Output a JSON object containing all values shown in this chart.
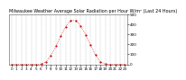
{
  "title": "Milwaukee Weather Average Solar Radiation per Hour W/m² (Last 24 Hours)",
  "x_hours": [
    0,
    1,
    2,
    3,
    4,
    5,
    6,
    7,
    8,
    9,
    10,
    11,
    12,
    13,
    14,
    15,
    16,
    17,
    18,
    19,
    20,
    21,
    22,
    23
  ],
  "y_values": [
    0,
    0,
    0,
    0,
    0,
    0,
    2,
    25,
    90,
    180,
    285,
    375,
    440,
    435,
    385,
    295,
    195,
    95,
    25,
    2,
    0,
    0,
    0,
    0
  ],
  "ylim": [
    0,
    500
  ],
  "yticks": [
    0,
    100,
    200,
    300,
    400,
    500
  ],
  "ytick_labels": [
    "0",
    "100",
    "200",
    "300",
    "400",
    "500"
  ],
  "line_color": "#cc0000",
  "bg_color": "#ffffff",
  "plot_bg": "#ffffff",
  "grid_color": "#999999",
  "title_fontsize": 3.5,
  "tick_fontsize": 3.0,
  "markersize": 1.2,
  "linewidth": 0.5
}
